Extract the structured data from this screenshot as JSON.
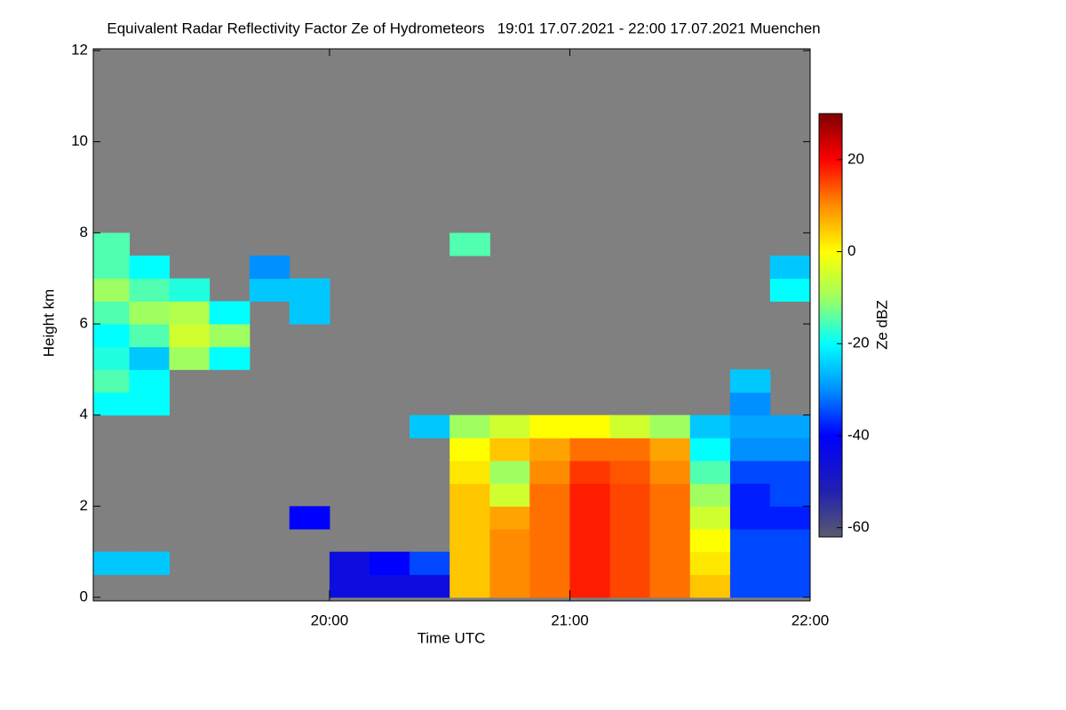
{
  "chart_data": {
    "type": "heatmap",
    "title": "Equivalent Radar Reflectivity Factor Ze of Hydrometeors   19:01 17.07.2021 - 22:00 17.07.2021 Muenchen",
    "x_label": "Time UTC",
    "y_label": "Height km",
    "colorbar_label": "Ze dBZ",
    "background": "#808080",
    "xlim": [
      19.017,
      22
    ],
    "xticks": [
      {
        "value": 20,
        "label": "20:00"
      },
      {
        "value": 21,
        "label": "21:00"
      },
      {
        "value": 22,
        "label": "22:00"
      }
    ],
    "ylim": [
      0,
      12
    ],
    "yticks": [
      0,
      2,
      4,
      6,
      8,
      10,
      12
    ],
    "zlim": [
      -62,
      30
    ],
    "zticks": [
      -60,
      -40,
      -20,
      0,
      20
    ],
    "colormap": [
      {
        "value": -62,
        "color": "#5a5a6e"
      },
      {
        "value": -52,
        "color": "#2020b0"
      },
      {
        "value": -40,
        "color": "#0000ff"
      },
      {
        "value": -30,
        "color": "#0090ff"
      },
      {
        "value": -20,
        "color": "#00ffff"
      },
      {
        "value": -10,
        "color": "#a0ff60"
      },
      {
        "value": 0,
        "color": "#ffff00"
      },
      {
        "value": 10,
        "color": "#ff8c00"
      },
      {
        "value": 20,
        "color": "#ff0000"
      },
      {
        "value": 30,
        "color": "#800000"
      }
    ],
    "x_edges": [
      19.017,
      19.167,
      19.333,
      19.5,
      19.667,
      19.833,
      20,
      20.167,
      20.333,
      20.5,
      20.667,
      20.833,
      21,
      21.167,
      21.333,
      21.5,
      21.667,
      21.833,
      22
    ],
    "y_edges": [
      0,
      0.5,
      1,
      1.5,
      2,
      2.5,
      3,
      3.5,
      4,
      4.5,
      5,
      5.5,
      6,
      6.5,
      7,
      7.5,
      8
    ],
    "z": [
      [
        null,
        null,
        null,
        null,
        null,
        null,
        -45,
        -45,
        -45,
        5,
        10,
        12,
        18,
        15,
        12,
        5,
        -35,
        -35
      ],
      [
        -25,
        -25,
        null,
        null,
        null,
        null,
        -45,
        -40,
        -35,
        5,
        10,
        12,
        18,
        15,
        12,
        2,
        -35,
        -35
      ],
      [
        null,
        null,
        null,
        null,
        null,
        null,
        null,
        null,
        null,
        5,
        10,
        12,
        18,
        15,
        12,
        0,
        -35,
        -35
      ],
      [
        null,
        null,
        null,
        null,
        null,
        -40,
        null,
        null,
        null,
        5,
        8,
        12,
        18,
        15,
        12,
        -5,
        -38,
        -38
      ],
      [
        null,
        null,
        null,
        null,
        null,
        null,
        null,
        null,
        null,
        5,
        -5,
        12,
        18,
        15,
        12,
        -10,
        -38,
        -35
      ],
      [
        null,
        null,
        null,
        null,
        null,
        null,
        null,
        null,
        null,
        2,
        -10,
        10,
        16,
        14,
        10,
        -15,
        -35,
        -35
      ],
      [
        null,
        null,
        null,
        null,
        null,
        null,
        null,
        null,
        null,
        0,
        5,
        8,
        12,
        12,
        8,
        -20,
        -30,
        -30
      ],
      [
        null,
        null,
        null,
        null,
        null,
        null,
        null,
        null,
        -25,
        -10,
        -5,
        0,
        0,
        -5,
        -10,
        -25,
        -28,
        -28
      ],
      [
        -20,
        -20,
        null,
        null,
        null,
        null,
        null,
        null,
        null,
        null,
        null,
        null,
        null,
        null,
        null,
        null,
        -30,
        null
      ],
      [
        -15,
        -20,
        null,
        null,
        null,
        null,
        null,
        null,
        null,
        null,
        null,
        null,
        null,
        null,
        null,
        null,
        -25,
        null
      ],
      [
        -18,
        -25,
        -10,
        -20,
        null,
        null,
        null,
        null,
        null,
        null,
        null,
        null,
        null,
        null,
        null,
        null,
        null,
        null
      ],
      [
        -20,
        -15,
        -5,
        -10,
        null,
        null,
        null,
        null,
        null,
        null,
        null,
        null,
        null,
        null,
        null,
        null,
        null,
        null
      ],
      [
        -15,
        -10,
        -8,
        -20,
        null,
        -25,
        null,
        null,
        null,
        null,
        null,
        null,
        null,
        null,
        null,
        null,
        null,
        null
      ],
      [
        -10,
        -15,
        -18,
        null,
        -25,
        -25,
        null,
        null,
        null,
        null,
        null,
        null,
        null,
        null,
        null,
        null,
        null,
        -20
      ],
      [
        -15,
        -20,
        null,
        null,
        -30,
        null,
        null,
        null,
        null,
        null,
        null,
        null,
        null,
        null,
        null,
        null,
        null,
        -25
      ],
      [
        -15,
        null,
        null,
        null,
        null,
        null,
        null,
        null,
        null,
        -15,
        null,
        null,
        null,
        null,
        null,
        null,
        null,
        null
      ]
    ]
  }
}
